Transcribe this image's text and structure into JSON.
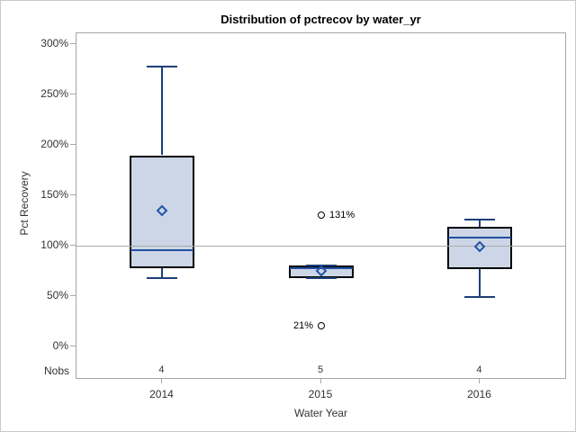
{
  "title": "Distribution of pctrecov by water_yr",
  "y_axis": {
    "label": "Pct Recovery",
    "tick_labels": [
      "0%",
      "50%",
      "100%",
      "150%",
      "200%",
      "250%",
      "300%"
    ],
    "tick_values": [
      0,
      50,
      100,
      150,
      200,
      250,
      300
    ]
  },
  "x_axis": {
    "label": "Water Year",
    "categories": [
      "2014",
      "2015",
      "2016"
    ]
  },
  "nobs": {
    "label": "Nobs",
    "values": [
      "4",
      "5",
      "4"
    ]
  },
  "chart_data": {
    "type": "boxplot",
    "title": "Distribution of pctrecov by water_yr",
    "xlabel": "Water Year",
    "ylabel": "Pct Recovery",
    "categories": [
      "2014",
      "2015",
      "2016"
    ],
    "y_tick_values": [
      0,
      50,
      100,
      150,
      200,
      250,
      300
    ],
    "reference_line": 100,
    "grid": false,
    "legend": "none",
    "series": [
      {
        "category": "2014",
        "nobs": 4,
        "whisker_low": 68,
        "q1": 78,
        "median": 96,
        "q3": 190,
        "whisker_high": 278,
        "mean": 135,
        "outliers": []
      },
      {
        "category": "2015",
        "nobs": 5,
        "whisker_low": 68,
        "q1": 68,
        "median": 78,
        "q3": 81,
        "whisker_high": 81,
        "mean": 75,
        "outliers": [
          {
            "value": 131,
            "label": "131%",
            "label_side": "right"
          },
          {
            "value": 21,
            "label": "21%",
            "label_side": "left"
          }
        ]
      },
      {
        "category": "2016",
        "nobs": 4,
        "whisker_low": 49,
        "q1": 77,
        "median": 108,
        "q3": 119,
        "whisker_high": 126,
        "mean": 99,
        "outliers": []
      }
    ],
    "colors": {
      "box_fill": "#ccd6e7",
      "box_border": "#000000",
      "median_line": "#2050a0",
      "whisker": "#1c3f77",
      "mean_marker": "#2353a8",
      "outlier_stroke": "#000000",
      "frame": "#a6a6a6",
      "reference_line_color": "#aaaaaa",
      "text": "#333333",
      "title_text": "#000000"
    }
  }
}
